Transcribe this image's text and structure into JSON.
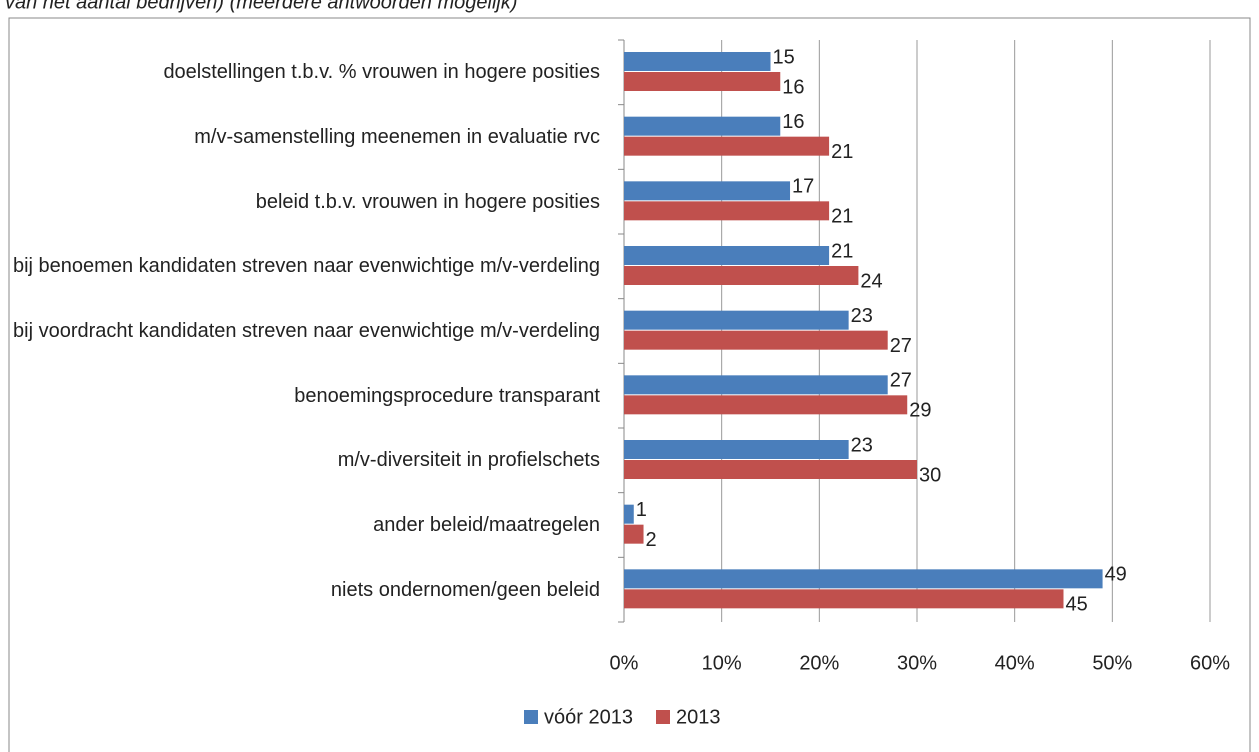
{
  "chart_data": {
    "type": "bar",
    "orientation": "horizontal",
    "subtitle": "van het aantal bedrijven) (meerdere antwoorden mogelijk)",
    "categories": [
      "doelstellingen t.b.v. % vrouwen in hogere posities",
      "m/v-samenstelling meenemen in evaluatie rvc",
      "beleid t.b.v. vrouwen in hogere posities",
      "bij benoemen kandidaten streven naar evenwichtige m/v-verdeling",
      "bij voordracht kandidaten streven naar evenwichtige m/v-verdeling",
      "benoemingsprocedure transparant",
      "m/v-diversiteit in profielschets",
      "ander beleid/maatregelen",
      "niets ondernomen/geen beleid"
    ],
    "series": [
      {
        "name": "vóór 2013",
        "color": "#4a7ebb",
        "values": [
          15,
          16,
          17,
          21,
          23,
          27,
          23,
          1,
          49
        ]
      },
      {
        "name": "2013",
        "color": "#c0504d",
        "values": [
          16,
          21,
          21,
          24,
          27,
          29,
          30,
          2,
          45
        ]
      }
    ],
    "xlim": [
      0,
      60
    ],
    "xticks": [
      {
        "value": 0,
        "label": "0%"
      },
      {
        "value": 10,
        "label": "10%"
      },
      {
        "value": 20,
        "label": "20%"
      },
      {
        "value": 30,
        "label": "30%"
      },
      {
        "value": 40,
        "label": "40%"
      },
      {
        "value": 50,
        "label": "50%"
      },
      {
        "value": 60,
        "label": "60%"
      }
    ],
    "grid": true,
    "legend": "bottom"
  }
}
